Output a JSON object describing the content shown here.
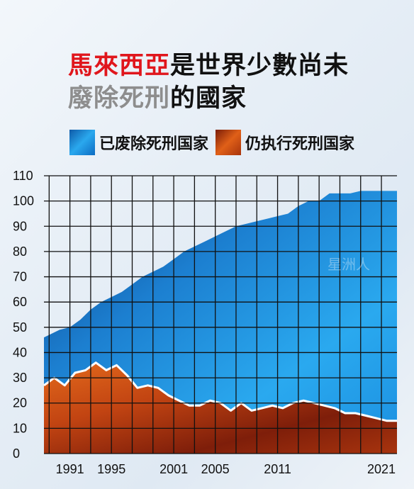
{
  "title": {
    "line1_red": "馬來西亞",
    "line1_black": "是世界少數尚未",
    "line2_gray": "廢除死刑",
    "line2_black": "的國家"
  },
  "legend": [
    {
      "label": "已废除死刑国家",
      "color": "#1f8fdc"
    },
    {
      "label": "仍执行死刑国家",
      "color": "#d9541a"
    }
  ],
  "watermark": "星洲人",
  "chart_data": {
    "type": "area",
    "xlabel": "",
    "ylabel": "",
    "ylim": [
      0,
      110
    ],
    "xlim": [
      1988.5,
      2022.5
    ],
    "grid": true,
    "y_ticks": [
      "0",
      "10",
      "20",
      "30",
      "40",
      "50",
      "60",
      "70",
      "80",
      "90",
      "100",
      "110"
    ],
    "x_ticks": [
      "1991",
      "1995",
      "2001",
      "2005",
      "2011",
      "2021"
    ],
    "series": [
      {
        "name": "已废除死刑国家",
        "color": "#1f8fdc",
        "x": [
          1988.5,
          1990,
          1991,
          1992,
          1993,
          1994,
          1995,
          1996,
          1997,
          1998,
          1999,
          2000,
          2001,
          2002,
          2003,
          2004,
          2005,
          2006,
          2007,
          2008,
          2009,
          2010,
          2011,
          2012,
          2013,
          2014,
          2015,
          2016,
          2017,
          2018,
          2019,
          2020,
          2021,
          2022.5
        ],
        "values": [
          46,
          49,
          50,
          53,
          57,
          60,
          62,
          64,
          67,
          70,
          72,
          74,
          77,
          80,
          82,
          84,
          86,
          88,
          90,
          91,
          92,
          93,
          94,
          95,
          98,
          100,
          100,
          103,
          103,
          103,
          104,
          104,
          104,
          104
        ]
      },
      {
        "name": "仍执行死刑国家",
        "color": "#d9541a",
        "x": [
          1988.5,
          1989.5,
          1990.5,
          1991.5,
          1992.5,
          1993.5,
          1994.5,
          1995.5,
          1996.5,
          1997.5,
          1998.5,
          1999.5,
          2000.5,
          2001.5,
          2002.5,
          2003.5,
          2004.5,
          2005.5,
          2006.5,
          2007.5,
          2008.5,
          2009.5,
          2010.5,
          2011.5,
          2012.5,
          2013.5,
          2014.5,
          2015.5,
          2016.5,
          2017.5,
          2018.5,
          2019.5,
          2020.5,
          2021.5,
          2022.5
        ],
        "values": [
          27,
          30,
          27,
          32,
          33,
          36,
          33,
          35,
          31,
          26,
          27,
          26,
          23,
          21,
          19,
          19,
          21,
          20,
          17,
          20,
          17,
          18,
          19,
          18,
          20,
          21,
          20,
          19,
          18,
          16,
          16,
          15,
          14,
          13,
          13
        ]
      }
    ]
  }
}
